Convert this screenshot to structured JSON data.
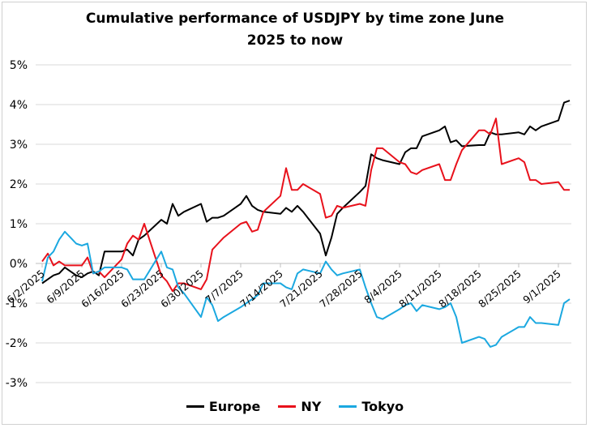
{
  "chart_data": {
    "type": "line",
    "title_lines": [
      "Cumulative performance of USDJPY by time zone June",
      "2025 to now"
    ],
    "xlabel": "",
    "ylabel": "",
    "x_tick_labels": [
      "6/2/2025",
      "6/9/2025",
      "6/16/2025",
      "6/23/2025",
      "6/30/2025",
      "7/7/2025",
      "7/14/2025",
      "7/21/2025",
      "7/28/2025",
      "8/4/2025",
      "8/11/2025",
      "8/18/2025",
      "8/25/2025",
      "9/1/2025"
    ],
    "y_tick_labels": [
      "5%",
      "4%",
      "3%",
      "2%",
      "1%",
      "0%",
      "-1%",
      "-2%",
      "-3%"
    ],
    "y_ticks": [
      5,
      4,
      3,
      2,
      1,
      0,
      -1,
      -2,
      -3
    ],
    "ylim": [
      -3,
      5
    ],
    "grid": "horizontal",
    "legend_position": "bottom",
    "series": [
      {
        "name": "Europe",
        "color": "#000000",
        "points": [
          [
            0,
            -0.5
          ],
          [
            1,
            -0.4
          ],
          [
            2,
            -0.3
          ],
          [
            3,
            -0.25
          ],
          [
            4,
            -0.1
          ],
          [
            5,
            -0.2
          ],
          [
            6,
            -0.3
          ],
          [
            7,
            -0.35
          ],
          [
            8,
            -0.25
          ],
          [
            9,
            -0.2
          ],
          [
            10,
            -0.3
          ],
          [
            11,
            0.3
          ],
          [
            14,
            0.3
          ],
          [
            15,
            0.35
          ],
          [
            16,
            0.2
          ],
          [
            17,
            0.6
          ],
          [
            18,
            0.7
          ],
          [
            21,
            1.1
          ],
          [
            22,
            1.0
          ],
          [
            23,
            1.5
          ],
          [
            24,
            1.2
          ],
          [
            25,
            1.3
          ],
          [
            28,
            1.5
          ],
          [
            29,
            1.05
          ],
          [
            30,
            1.15
          ],
          [
            31,
            1.15
          ],
          [
            32,
            1.2
          ],
          [
            35,
            1.5
          ],
          [
            36,
            1.7
          ],
          [
            37,
            1.45
          ],
          [
            38,
            1.35
          ],
          [
            39,
            1.3
          ],
          [
            42,
            1.25
          ],
          [
            43,
            1.4
          ],
          [
            44,
            1.3
          ],
          [
            45,
            1.45
          ],
          [
            46,
            1.3
          ],
          [
            49,
            0.75
          ],
          [
            50,
            0.2
          ],
          [
            51,
            0.65
          ],
          [
            52,
            1.25
          ],
          [
            53,
            1.4
          ],
          [
            56,
            1.8
          ],
          [
            57,
            1.95
          ],
          [
            58,
            2.75
          ],
          [
            59,
            2.65
          ],
          [
            60,
            2.6
          ],
          [
            63,
            2.5
          ],
          [
            64,
            2.8
          ],
          [
            65,
            2.9
          ],
          [
            66,
            2.9
          ],
          [
            67,
            3.2
          ],
          [
            70,
            3.35
          ],
          [
            71,
            3.45
          ],
          [
            72,
            3.05
          ],
          [
            73,
            3.1
          ],
          [
            74,
            2.95
          ],
          [
            77,
            2.98
          ],
          [
            78,
            2.98
          ],
          [
            79,
            3.3
          ],
          [
            80,
            3.25
          ],
          [
            81,
            3.25
          ],
          [
            84,
            3.3
          ],
          [
            85,
            3.25
          ],
          [
            86,
            3.45
          ],
          [
            87,
            3.35
          ],
          [
            88,
            3.45
          ],
          [
            91,
            3.6
          ],
          [
            92,
            4.05
          ],
          [
            93,
            4.1
          ]
        ]
      },
      {
        "name": "NY",
        "color": "#e8111b",
        "points": [
          [
            0,
            0.05
          ],
          [
            1,
            0.25
          ],
          [
            2,
            -0.05
          ],
          [
            3,
            0.05
          ],
          [
            4,
            -0.05
          ],
          [
            5,
            -0.05
          ],
          [
            6,
            -0.05
          ],
          [
            7,
            -0.05
          ],
          [
            8,
            0.15
          ],
          [
            9,
            -0.25
          ],
          [
            10,
            -0.2
          ],
          [
            11,
            -0.35
          ],
          [
            14,
            0.1
          ],
          [
            15,
            0.5
          ],
          [
            16,
            0.7
          ],
          [
            17,
            0.6
          ],
          [
            18,
            1.0
          ],
          [
            21,
            -0.3
          ],
          [
            22,
            -0.45
          ],
          [
            23,
            -0.7
          ],
          [
            24,
            -0.5
          ],
          [
            25,
            -0.5
          ],
          [
            28,
            -0.65
          ],
          [
            29,
            -0.4
          ],
          [
            30,
            0.35
          ],
          [
            31,
            0.5
          ],
          [
            32,
            0.65
          ],
          [
            35,
            1.0
          ],
          [
            36,
            1.05
          ],
          [
            37,
            0.8
          ],
          [
            38,
            0.85
          ],
          [
            39,
            1.3
          ],
          [
            42,
            1.7
          ],
          [
            43,
            2.4
          ],
          [
            44,
            1.85
          ],
          [
            45,
            1.85
          ],
          [
            46,
            2.0
          ],
          [
            49,
            1.75
          ],
          [
            50,
            1.15
          ],
          [
            51,
            1.2
          ],
          [
            52,
            1.45
          ],
          [
            53,
            1.4
          ],
          [
            56,
            1.5
          ],
          [
            57,
            1.45
          ],
          [
            58,
            2.35
          ],
          [
            59,
            2.9
          ],
          [
            60,
            2.9
          ],
          [
            63,
            2.55
          ],
          [
            64,
            2.5
          ],
          [
            65,
            2.3
          ],
          [
            66,
            2.25
          ],
          [
            67,
            2.35
          ],
          [
            70,
            2.5
          ],
          [
            71,
            2.1
          ],
          [
            72,
            2.1
          ],
          [
            73,
            2.5
          ],
          [
            74,
            2.85
          ],
          [
            77,
            3.35
          ],
          [
            78,
            3.35
          ],
          [
            79,
            3.25
          ],
          [
            80,
            3.65
          ],
          [
            81,
            2.5
          ],
          [
            84,
            2.65
          ],
          [
            85,
            2.55
          ],
          [
            86,
            2.1
          ],
          [
            87,
            2.1
          ],
          [
            88,
            2.0
          ],
          [
            91,
            2.05
          ],
          [
            92,
            1.85
          ],
          [
            93,
            1.85
          ]
        ]
      },
      {
        "name": "Tokyo",
        "color": "#1ba8e0",
        "points": [
          [
            0,
            -0.45
          ],
          [
            1,
            0.15
          ],
          [
            2,
            0.3
          ],
          [
            3,
            0.6
          ],
          [
            4,
            0.8
          ],
          [
            5,
            0.65
          ],
          [
            6,
            0.5
          ],
          [
            7,
            0.45
          ],
          [
            8,
            0.5
          ],
          [
            9,
            -0.25
          ],
          [
            10,
            -0.2
          ],
          [
            11,
            -0.1
          ],
          [
            14,
            -0.1
          ],
          [
            15,
            -0.15
          ],
          [
            16,
            -0.4
          ],
          [
            17,
            -0.4
          ],
          [
            18,
            -0.4
          ],
          [
            21,
            0.3
          ],
          [
            22,
            -0.1
          ],
          [
            23,
            -0.15
          ],
          [
            24,
            -0.6
          ],
          [
            25,
            -0.75
          ],
          [
            28,
            -1.35
          ],
          [
            29,
            -0.85
          ],
          [
            30,
            -1.05
          ],
          [
            31,
            -1.45
          ],
          [
            32,
            -1.35
          ],
          [
            35,
            -1.1
          ],
          [
            36,
            -1.0
          ],
          [
            37,
            -0.9
          ],
          [
            38,
            -0.8
          ],
          [
            39,
            -0.5
          ],
          [
            42,
            -0.5
          ],
          [
            43,
            -0.6
          ],
          [
            44,
            -0.65
          ],
          [
            45,
            -0.25
          ],
          [
            46,
            -0.15
          ],
          [
            49,
            -0.25
          ],
          [
            50,
            0.05
          ],
          [
            51,
            -0.15
          ],
          [
            52,
            -0.3
          ],
          [
            53,
            -0.25
          ],
          [
            56,
            -0.15
          ],
          [
            57,
            -0.6
          ],
          [
            58,
            -1.0
          ],
          [
            59,
            -1.35
          ],
          [
            60,
            -1.4
          ],
          [
            63,
            -1.15
          ],
          [
            64,
            -1.05
          ],
          [
            65,
            -1.0
          ],
          [
            66,
            -1.2
          ],
          [
            67,
            -1.05
          ],
          [
            70,
            -1.15
          ],
          [
            71,
            -1.1
          ],
          [
            72,
            -1.0
          ],
          [
            73,
            -1.35
          ],
          [
            74,
            -2.0
          ],
          [
            77,
            -1.85
          ],
          [
            78,
            -1.9
          ],
          [
            79,
            -2.1
          ],
          [
            80,
            -2.05
          ],
          [
            81,
            -1.85
          ],
          [
            84,
            -1.6
          ],
          [
            85,
            -1.6
          ],
          [
            86,
            -1.35
          ],
          [
            87,
            -1.5
          ],
          [
            88,
            -1.5
          ],
          [
            91,
            -1.55
          ],
          [
            92,
            -1.0
          ],
          [
            93,
            -0.9
          ]
        ]
      }
    ]
  }
}
